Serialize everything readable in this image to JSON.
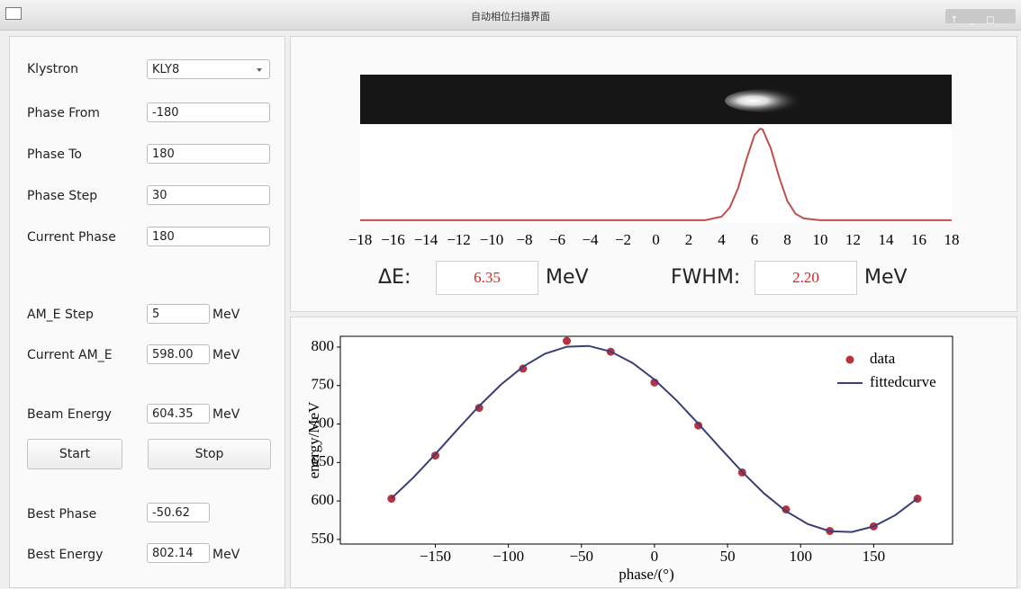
{
  "window": {
    "title": "自动相位扫描界面"
  },
  "form": {
    "klystron": {
      "label": "Klystron",
      "value": "KLY8"
    },
    "phase_from": {
      "label": "Phase From",
      "value": "-180"
    },
    "phase_to": {
      "label": "Phase To",
      "value": "180"
    },
    "phase_step": {
      "label": "Phase Step",
      "value": "30"
    },
    "current_phase": {
      "label": "Current Phase",
      "value": "180"
    },
    "am_e_step": {
      "label": "AM_E Step",
      "value": "5",
      "unit": "MeV"
    },
    "current_am_e": {
      "label": "Current AM_E",
      "value": "598.00",
      "unit": "MeV"
    },
    "beam_energy": {
      "label": "Beam Energy",
      "value": "604.35",
      "unit": "MeV"
    },
    "best_phase": {
      "label": "Best Phase",
      "value": "-50.62"
    },
    "best_energy": {
      "label": "Best Energy",
      "value": "802.14",
      "unit": "MeV"
    }
  },
  "buttons": {
    "start": "Start",
    "stop": "Stop"
  },
  "energy_spread": {
    "delta_e": {
      "label": "ΔE:",
      "value": "6.35",
      "unit": "MeV"
    },
    "fwhm": {
      "label": "FWHM:",
      "value": "2.20",
      "unit": "MeV"
    }
  },
  "chart_data": [
    {
      "type": "line",
      "color": "#c0504d",
      "x": [
        -18,
        -14,
        -10,
        -6,
        -2,
        2,
        3,
        4,
        4.5,
        5,
        5.5,
        6,
        6.35,
        6.5,
        7,
        7.5,
        8,
        8.5,
        9,
        10,
        14,
        18
      ],
      "values": [
        0.03,
        0.03,
        0.03,
        0.03,
        0.03,
        0.03,
        0.03,
        0.07,
        0.17,
        0.38,
        0.69,
        0.96,
        1.03,
        1.02,
        0.81,
        0.5,
        0.24,
        0.1,
        0.05,
        0.03,
        0.03,
        0.03
      ],
      "xlim": [
        -18,
        18
      ],
      "xticks": [
        {
          "value": -18,
          "label": "−18"
        },
        {
          "value": -16,
          "label": "−16"
        },
        {
          "value": -14,
          "label": "−14"
        },
        {
          "value": -12,
          "label": "−12"
        },
        {
          "value": -10,
          "label": "−10"
        },
        {
          "value": -8,
          "label": "−8"
        },
        {
          "value": -6,
          "label": "−6"
        },
        {
          "value": -4,
          "label": "−4"
        },
        {
          "value": -2,
          "label": "−2"
        },
        0,
        2,
        4,
        6,
        8,
        10,
        12,
        14,
        16,
        18
      ],
      "ylim": [
        0,
        1.08
      ]
    },
    {
      "type": "scatter",
      "xlabel": "phase/(°)",
      "ylabel": "energy/MeV",
      "xlim": [
        -215,
        204
      ],
      "xticks": [
        {
          "value": -150,
          "label": "−150"
        },
        {
          "value": -100,
          "label": "−100"
        },
        {
          "value": -50,
          "label": "−50"
        },
        0,
        50,
        100,
        150
      ],
      "ylim": [
        544,
        814
      ],
      "yticks": [
        550,
        600,
        650,
        700,
        750,
        800
      ],
      "legend": "upper right",
      "series": [
        {
          "name": "data",
          "type": "scatter",
          "color": "#b7343f",
          "x": [
            -180,
            -150,
            -120,
            -90,
            -60,
            -30,
            0,
            30,
            60,
            90,
            120,
            150,
            180
          ],
          "values": [
            603,
            659,
            721,
            772,
            808,
            794,
            754,
            698,
            637,
            589,
            561,
            567,
            603
          ]
        },
        {
          "name": "fittedcurve",
          "type": "line",
          "color": "#3a3f78",
          "x": [
            -180,
            -165,
            -150,
            -135,
            -120,
            -105,
            -90,
            -75,
            -60,
            -45,
            -30,
            -15,
            0,
            15,
            30,
            45,
            60,
            75,
            90,
            105,
            120,
            135,
            150,
            165,
            180
          ],
          "values": [
            603.5,
            630.4,
            660.8,
            692.5,
            723.4,
            751.4,
            774.5,
            791.3,
            800.5,
            801.5,
            794.3,
            779.4,
            757.8,
            730.8,
            700.4,
            668.7,
            637.8,
            609.8,
            586.7,
            569.9,
            560.7,
            559.7,
            566.9,
            581.8,
            603.4
          ]
        }
      ]
    }
  ]
}
